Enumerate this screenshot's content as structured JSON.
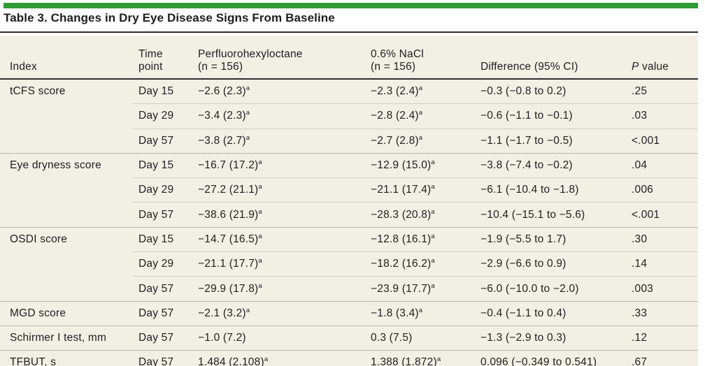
{
  "colors": {
    "accent_green": "#2d9b36",
    "row_beige": "#f2f0e5",
    "rule_dark": "#2d2d2d",
    "hairline_within_group": "#d1cec1",
    "hairline_between_groups": "#b9b7aa"
  },
  "title": "Table 3. Changes in Dry Eye Disease Signs From Baseline",
  "table": {
    "header": {
      "index": "Index",
      "time_line1": "Time",
      "time_line2": "point",
      "drug_line1": "Perfluorohexyloctane",
      "drug_line2": "(n = 156)",
      "nacl_line1": "0.6% NaCl",
      "nacl_line2": "(n = 156)",
      "difference": "Difference (95% CI)",
      "p_italic": "P",
      "p_rest": " value"
    },
    "footnote_marker": "a",
    "rows": [
      {
        "index": "tCFS score",
        "time": "Day 15",
        "drug": "−2.6 (2.3)^a",
        "nacl": "−2.3 (2.4)^a",
        "diff": "−0.3 (−0.8 to 0.2)",
        "p": ".25"
      },
      {
        "index": "",
        "time": "Day 29",
        "drug": "−3.4 (2.3)^a",
        "nacl": "−2.8 (2.4)^a",
        "diff": "−0.6 (−1.1 to −0.1)",
        "p": ".03"
      },
      {
        "index": "",
        "time": "Day 57",
        "drug": "−3.8 (2.7)^a",
        "nacl": "−2.7 (2.8)^a",
        "diff": "−1.1 (−1.7 to −0.5)",
        "p": "<.001"
      },
      {
        "index": "Eye dryness score",
        "time": "Day 15",
        "drug": "−16.7 (17.2)^a",
        "nacl": "−12.9 (15.0)^a",
        "diff": "−3.8 (−7.4 to −0.2)",
        "p": ".04"
      },
      {
        "index": "",
        "time": "Day 29",
        "drug": "−27.2 (21.1)^a",
        "nacl": "−21.1 (17.4)^a",
        "diff": "−6.1 (−10.4 to −1.8)",
        "p": ".006"
      },
      {
        "index": "",
        "time": "Day 57",
        "drug": "−38.6 (21.9)^a",
        "nacl": "−28.3 (20.8)^a",
        "diff": "−10.4 (−15.1 to −5.6)",
        "p": "<.001"
      },
      {
        "index": "OSDI score",
        "time": "Day 15",
        "drug": "−14.7 (16.5)^a",
        "nacl": "−12.8 (16.1)^a",
        "diff": "−1.9 (−5.5 to 1.7)",
        "p": ".30"
      },
      {
        "index": "",
        "time": "Day 29",
        "drug": "−21.1 (17.7)^a",
        "nacl": "−18.2 (16.2)^a",
        "diff": "−2.9 (−6.6 to 0.9)",
        "p": ".14"
      },
      {
        "index": "",
        "time": "Day 57",
        "drug": "−29.9 (17.8)^a",
        "nacl": "−23.9 (17.7)^a",
        "diff": "−6.0 (−10.0 to −2.0)",
        "p": ".003"
      },
      {
        "index": "MGD score",
        "time": "Day 57",
        "drug": "−2.1 (3.2)^a",
        "nacl": "−1.8 (3.4)^a",
        "diff": "−0.4 (−1.1 to 0.4)",
        "p": ".33"
      },
      {
        "index": "Schirmer I test, mm",
        "time": "Day 57",
        "drug": "−1.0 (7.2)",
        "nacl": "0.3 (7.5)",
        "diff": "−1.3 (−2.9 to 0.3)",
        "p": ".12"
      },
      {
        "index": "TFBUT, s",
        "time": "Day 57",
        "drug": "1.484 (2.108)^a",
        "nacl": "1.388 (1.872)^a",
        "diff": "0.096 (−0.349 to 0.541)",
        "p": ".67"
      }
    ]
  }
}
